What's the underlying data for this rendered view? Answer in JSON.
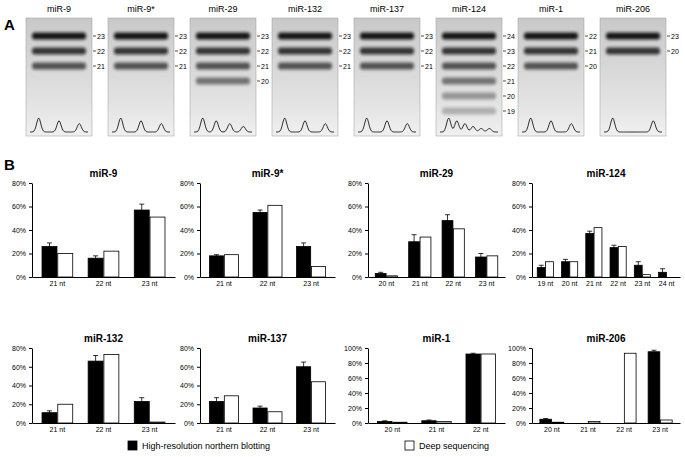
{
  "panel_labels": [
    "A",
    "B"
  ],
  "blots": [
    {
      "name": "miR-9",
      "bands": [
        23,
        22,
        21
      ]
    },
    {
      "name": "miR-9*",
      "bands": [
        23,
        22,
        21
      ]
    },
    {
      "name": "miR-29",
      "bands": [
        23,
        22,
        21,
        20
      ]
    },
    {
      "name": "miR-132",
      "bands": [
        23,
        22,
        21
      ]
    },
    {
      "name": "miR-137",
      "bands": [
        23,
        22,
        21
      ]
    },
    {
      "name": "miR-124",
      "bands": [
        24,
        23,
        22,
        21,
        20,
        19
      ]
    },
    {
      "name": "miR-1",
      "bands": [
        22,
        21,
        20
      ]
    },
    {
      "name": "miR-206",
      "bands": [
        23,
        20
      ]
    }
  ],
  "chart_data": [
    {
      "type": "bar",
      "title": "miR-9",
      "legend": "bottom",
      "categories": [
        "21 nt",
        "22 nt",
        "23 nt"
      ],
      "series": [
        {
          "name": "High-resolution northern blotting",
          "color": "#000000",
          "values": [
            26,
            16,
            57
          ],
          "errors": [
            3,
            2,
            5
          ]
        },
        {
          "name": "Deep sequencing",
          "color": "#ffffff",
          "values": [
            20,
            22,
            51
          ]
        }
      ],
      "ylim": [
        0,
        80
      ],
      "yticks": [
        {
          "value": 0,
          "label": "0%"
        },
        {
          "value": 20,
          "label": "20%"
        },
        {
          "value": 40,
          "label": "40%"
        },
        {
          "value": 60,
          "label": "60%"
        },
        {
          "value": 80,
          "label": "80%"
        }
      ]
    },
    {
      "type": "bar",
      "title": "miR-9*",
      "categories": [
        "21 nt",
        "22 nt",
        "23 nt"
      ],
      "series": [
        {
          "name": "High-resolution northern blotting",
          "color": "#000000",
          "values": [
            18,
            55,
            26
          ],
          "errors": [
            1,
            2,
            3
          ]
        },
        {
          "name": "Deep sequencing",
          "color": "#ffffff",
          "values": [
            19,
            61,
            9
          ]
        }
      ],
      "ylim": [
        0,
        80
      ],
      "yticks": [
        {
          "value": 0,
          "label": "0%"
        },
        {
          "value": 20,
          "label": "20%"
        },
        {
          "value": 40,
          "label": "40%"
        },
        {
          "value": 60,
          "label": "60%"
        },
        {
          "value": 80,
          "label": "80%"
        }
      ]
    },
    {
      "type": "bar",
      "title": "miR-29",
      "categories": [
        "20 nt",
        "21 nt",
        "22 nt",
        "23 nt"
      ],
      "series": [
        {
          "name": "High-resolution northern blotting",
          "color": "#000000",
          "values": [
            3,
            30,
            48,
            17
          ],
          "errors": [
            1,
            6,
            5,
            3
          ]
        },
        {
          "name": "Deep sequencing",
          "color": "#ffffff",
          "values": [
            1,
            34,
            41,
            18
          ]
        }
      ],
      "ylim": [
        0,
        80
      ],
      "yticks": [
        {
          "value": 0,
          "label": "0%"
        },
        {
          "value": 20,
          "label": "20%"
        },
        {
          "value": 40,
          "label": "40%"
        },
        {
          "value": 60,
          "label": "60%"
        },
        {
          "value": 80,
          "label": "80%"
        }
      ]
    },
    {
      "type": "bar",
      "title": "miR-124",
      "categories": [
        "19 nt",
        "20 nt",
        "21 nt",
        "22 nt",
        "23 nt",
        "24 nt"
      ],
      "series": [
        {
          "name": "High-resolution northern blotting",
          "color": "#000000",
          "values": [
            8,
            13,
            37,
            25,
            10,
            4
          ],
          "errors": [
            2,
            2,
            2,
            2,
            3,
            3
          ]
        },
        {
          "name": "Deep sequencing",
          "color": "#ffffff",
          "values": [
            13,
            13,
            42,
            26,
            2,
            0
          ]
        }
      ],
      "ylim": [
        0,
        80
      ],
      "yticks": [
        {
          "value": 0,
          "label": "0%"
        },
        {
          "value": 20,
          "label": "20%"
        },
        {
          "value": 40,
          "label": "40%"
        },
        {
          "value": 60,
          "label": "60%"
        },
        {
          "value": 80,
          "label": "80%"
        }
      ]
    },
    {
      "type": "bar",
      "title": "miR-132",
      "categories": [
        "21 nt",
        "22 nt",
        "23 nt"
      ],
      "series": [
        {
          "name": "High-resolution northern blotting",
          "color": "#000000",
          "values": [
            11,
            66,
            23
          ],
          "errors": [
            2,
            6,
            4
          ]
        },
        {
          "name": "Deep sequencing",
          "color": "#ffffff",
          "values": [
            20,
            73,
            1
          ]
        }
      ],
      "ylim": [
        0,
        80
      ],
      "yticks": [
        {
          "value": 0,
          "label": "0%"
        },
        {
          "value": 20,
          "label": "20%"
        },
        {
          "value": 40,
          "label": "40%"
        },
        {
          "value": 60,
          "label": "60%"
        },
        {
          "value": 80,
          "label": "80%"
        }
      ]
    },
    {
      "type": "bar",
      "title": "miR-137",
      "categories": [
        "21 nt",
        "22 nt",
        "23 nt"
      ],
      "series": [
        {
          "name": "High-resolution northern blotting",
          "color": "#000000",
          "values": [
            23,
            16,
            60
          ],
          "errors": [
            4,
            2,
            5
          ]
        },
        {
          "name": "Deep sequencing",
          "color": "#ffffff",
          "values": [
            29,
            12,
            44
          ]
        }
      ],
      "ylim": [
        0,
        80
      ],
      "yticks": [
        {
          "value": 0,
          "label": "0%"
        },
        {
          "value": 20,
          "label": "20%"
        },
        {
          "value": 40,
          "label": "40%"
        },
        {
          "value": 60,
          "label": "60%"
        },
        {
          "value": 80,
          "label": "80%"
        }
      ]
    },
    {
      "type": "bar",
      "title": "miR-1",
      "categories": [
        "20 nt",
        "21 nt",
        "22 nt"
      ],
      "series": [
        {
          "name": "High-resolution northern blotting",
          "color": "#000000",
          "values": [
            2,
            3,
            92
          ],
          "errors": [
            1,
            1,
            1
          ]
        },
        {
          "name": "Deep sequencing",
          "color": "#ffffff",
          "values": [
            1,
            2,
            92
          ]
        }
      ],
      "ylim": [
        0,
        100
      ],
      "yticks": [
        {
          "value": 0,
          "label": "0%"
        },
        {
          "value": 20,
          "label": "20%"
        },
        {
          "value": 40,
          "label": "40%"
        },
        {
          "value": 60,
          "label": "60%"
        },
        {
          "value": 80,
          "label": "80%"
        },
        {
          "value": 100,
          "label": "100%"
        }
      ]
    },
    {
      "type": "bar",
      "title": "miR-206",
      "categories": [
        "20 nt",
        "21 nt",
        "22 nt",
        "23 nt"
      ],
      "series": [
        {
          "name": "High-resolution northern blotting",
          "color": "#000000",
          "values": [
            5,
            0,
            0,
            95
          ],
          "errors": [
            1,
            null,
            null,
            2
          ]
        },
        {
          "name": "Deep sequencing",
          "color": "#ffffff",
          "values": [
            1,
            2,
            93,
            4
          ]
        }
      ],
      "ylim": [
        0,
        100
      ],
      "yticks": [
        {
          "value": 0,
          "label": "0%"
        },
        {
          "value": 20,
          "label": "20%"
        },
        {
          "value": 40,
          "label": "40%"
        },
        {
          "value": 60,
          "label": "60%"
        },
        {
          "value": 80,
          "label": "80%"
        },
        {
          "value": 100,
          "label": "100%"
        }
      ]
    }
  ]
}
